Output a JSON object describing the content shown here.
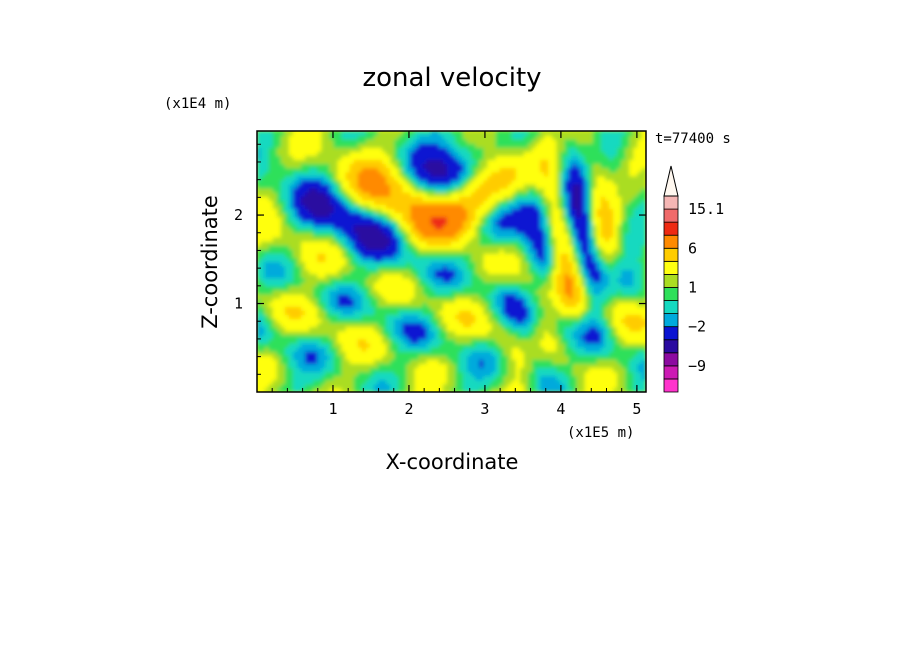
{
  "chart_data": {
    "type": "heatmap",
    "title": "zonal velocity",
    "xlabel": "X-coordinate",
    "ylabel": "Z-coordinate",
    "x_scale_note": "(x1E5 m)",
    "y_scale_note": "(x1E4 m)",
    "time_label": "t=77400 s",
    "xlim": [
      0,
      5.12
    ],
    "ylim": [
      0,
      2.95
    ],
    "x_ticks": [
      "1",
      "2",
      "3",
      "4",
      "5"
    ],
    "x_tick_values": [
      1,
      2,
      3,
      4,
      5
    ],
    "y_ticks": [
      "1",
      "2"
    ],
    "y_tick_values": [
      1,
      2
    ],
    "colorbar": {
      "labels": [
        "15.1",
        "6",
        "1",
        "−2",
        "−9"
      ],
      "label_values": [
        15.1,
        6,
        1,
        -2,
        -9
      ],
      "levels": [
        -15,
        -12,
        -9,
        -6,
        -4,
        -2,
        -1,
        0,
        1,
        2,
        4,
        6,
        9,
        12,
        15.1
      ],
      "colors": [
        "#ff33cc",
        "#cc1ab4",
        "#8c0aa0",
        "#2a0aa0",
        "#0a14d2",
        "#00aadc",
        "#14d9c0",
        "#2ee05a",
        "#aadd22",
        "#ffff10",
        "#ffcc00",
        "#ff8a00",
        "#ee2a12",
        "#f06a6a",
        "#f5b6b4"
      ],
      "extend_max": true
    }
  }
}
